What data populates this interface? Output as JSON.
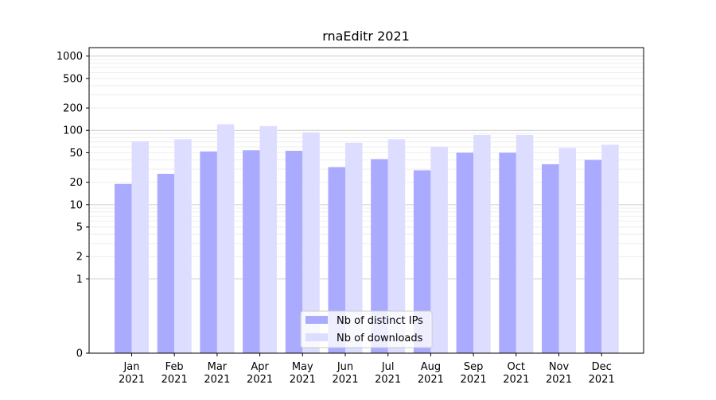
{
  "chart_data": {
    "type": "bar",
    "title": "rnaEditr 2021",
    "xlabel": "",
    "ylabel": "",
    "yscale": "symlog",
    "ylim": [
      0,
      1300
    ],
    "yticks": [
      0,
      1,
      2,
      5,
      10,
      20,
      50,
      100,
      200,
      500,
      1000
    ],
    "ytick_labels": [
      "0",
      "1",
      "2",
      "5",
      "10",
      "20",
      "50",
      "100",
      "200",
      "500",
      "1000"
    ],
    "categories": [
      "Jan\n2021",
      "Feb\n2021",
      "Mar\n2021",
      "Apr\n2021",
      "May\n2021",
      "Jun\n2021",
      "Jul\n2021",
      "Aug\n2021",
      "Sep\n2021",
      "Oct\n2021",
      "Nov\n2021",
      "Dec\n2021"
    ],
    "category_lines": [
      [
        "Jan",
        "2021"
      ],
      [
        "Feb",
        "2021"
      ],
      [
        "Mar",
        "2021"
      ],
      [
        "Apr",
        "2021"
      ],
      [
        "May",
        "2021"
      ],
      [
        "Jun",
        "2021"
      ],
      [
        "Jul",
        "2021"
      ],
      [
        "Aug",
        "2021"
      ],
      [
        "Sep",
        "2021"
      ],
      [
        "Oct",
        "2021"
      ],
      [
        "Nov",
        "2021"
      ],
      [
        "Dec",
        "2021"
      ]
    ],
    "series": [
      {
        "name": "Nb of distinct IPs",
        "color": "#aaaaff",
        "values": [
          19,
          26,
          52,
          54,
          53,
          32,
          41,
          29,
          50,
          50,
          35,
          40
        ]
      },
      {
        "name": "Nb of downloads",
        "color": "#ddddff",
        "values": [
          71,
          76,
          121,
          114,
          94,
          68,
          76,
          60,
          87,
          87,
          58,
          64
        ]
      }
    ],
    "grid": true,
    "legend_position": "bottom-center"
  }
}
